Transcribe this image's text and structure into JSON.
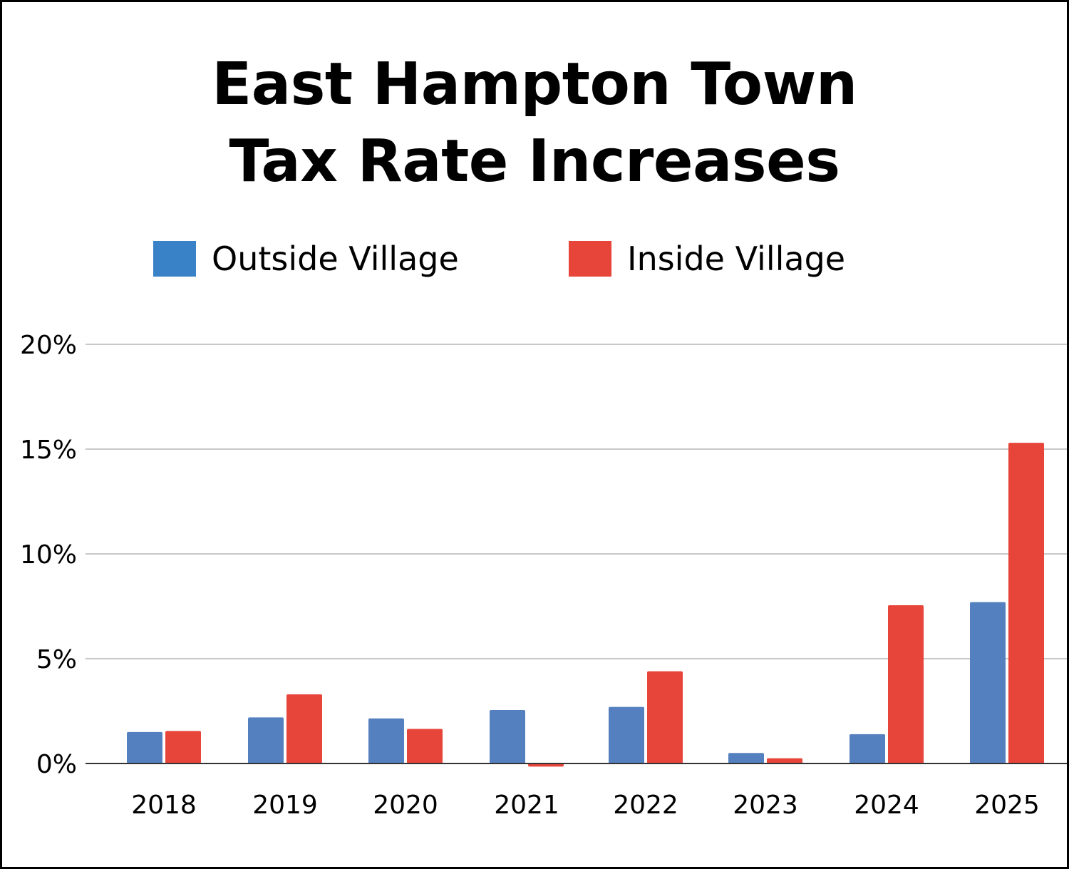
{
  "chart_data": {
    "type": "bar",
    "title": [
      "East Hampton Town",
      "Tax Rate Increases"
    ],
    "categories": [
      "2018",
      "2019",
      "2020",
      "2021",
      "2022",
      "2023",
      "2024",
      "2025"
    ],
    "series": [
      {
        "name": "Outside Village",
        "color": "#5580c0",
        "values": [
          1.5,
          2.2,
          2.15,
          2.55,
          2.7,
          0.5,
          1.4,
          7.7
        ]
      },
      {
        "name": "Inside Village",
        "color": "#e8453a",
        "values": [
          1.55,
          3.3,
          1.65,
          -0.15,
          4.4,
          0.25,
          7.55,
          15.3
        ]
      }
    ],
    "yticks": [
      "0%",
      "5%",
      "10%",
      "15%",
      "20%"
    ],
    "ytick_values": [
      0,
      5,
      10,
      15,
      20
    ],
    "ylim": [
      0,
      20
    ],
    "grid": true,
    "legend_position": "top-center",
    "legend_swatch_colors": [
      "#3a82c8",
      "#e8453a"
    ]
  }
}
